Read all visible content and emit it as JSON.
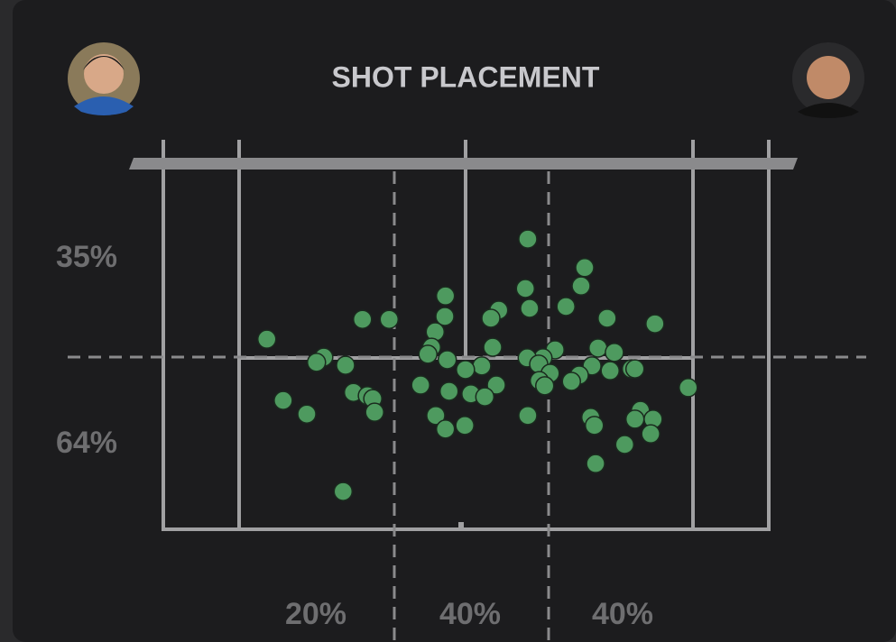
{
  "chart_data": {
    "type": "scatter",
    "title": "SHOT PLACEMENT",
    "annotations": [
      "35%",
      "64%",
      "20%",
      "40%",
      "40%"
    ],
    "color": "#4e9a5f",
    "xlim": [
      0,
      100
    ],
    "ylim": [
      0,
      100
    ],
    "x": [
      60.2,
      69.6,
      69.0,
      59.8,
      46.6,
      60.5,
      66.5,
      55.4,
      54.1,
      46.5,
      32.9,
      37.3,
      73.3,
      81.2,
      44.9,
      17.1,
      54.4,
      44.3,
      43.7,
      71.8,
      74.5,
      64.7,
      62.7,
      60.1,
      26.5,
      25.3,
      30.1,
      46.9,
      52.6,
      49.9,
      62.0,
      63.9,
      70.8,
      73.8,
      77.3,
      77.9,
      68.7,
      67.4,
      62.1,
      63.0,
      42.5,
      55.0,
      47.2,
      50.8,
      53.1,
      31.4,
      33.7,
      34.6,
      86.7,
      19.8,
      23.7,
      34.9,
      45.0,
      49.8,
      46.6,
      60.2,
      70.6,
      71.2,
      78.8,
      77.9,
      80.9,
      80.5,
      76.2,
      71.4,
      29.7
    ],
    "y": [
      20.9,
      28.7,
      33.7,
      34.4,
      36.4,
      39.8,
      39.3,
      40.3,
      42.5,
      42.0,
      42.8,
      42.8,
      42.5,
      44.0,
      46.2,
      48.2,
      50.4,
      50.4,
      52.3,
      50.6,
      51.8,
      51.1,
      53.3,
      53.3,
      53.1,
      54.5,
      55.3,
      53.8,
      55.5,
      56.5,
      55.0,
      57.5,
      55.5,
      56.8,
      56.3,
      56.3,
      58.0,
      59.7,
      59.5,
      60.9,
      60.7,
      60.7,
      62.4,
      63.1,
      63.9,
      62.7,
      63.6,
      64.4,
      61.4,
      64.9,
      68.6,
      68.1,
      69.0,
      71.7,
      72.7,
      69.0,
      69.5,
      71.7,
      67.6,
      70.0,
      70.0,
      74.0,
      76.9,
      82.1,
      89.7
    ]
  }
}
